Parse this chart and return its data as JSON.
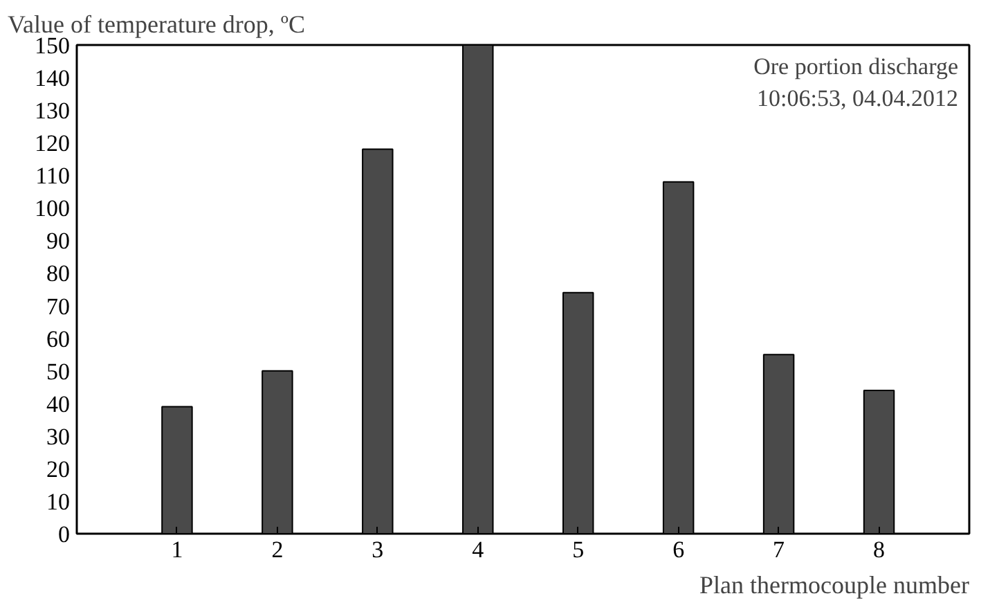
{
  "chart_data": {
    "type": "bar",
    "ylabel": "Value of temperature drop, ºC",
    "xlabel": "Plan thermocouple number",
    "categories": [
      "1",
      "2",
      "3",
      "4",
      "5",
      "6",
      "7",
      "8"
    ],
    "values": [
      39,
      50,
      118,
      150,
      74,
      108,
      55,
      44
    ],
    "color": "#4a4a4a",
    "ylim": [
      0,
      150
    ],
    "yticks": [
      0,
      10,
      20,
      30,
      40,
      50,
      60,
      70,
      80,
      90,
      100,
      110,
      120,
      130,
      140,
      150
    ],
    "grid": false,
    "annotations": [
      "Ore portion discharge\n10:06:53, 04.04.2012"
    ]
  }
}
